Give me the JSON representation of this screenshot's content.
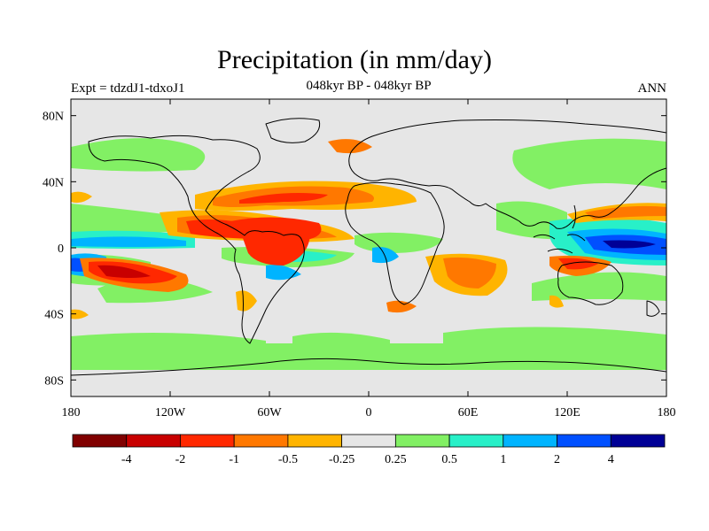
{
  "title": "Precipitation (in mm/day)",
  "subtitle_left": "Expt = tdzdJ1-tdxoJ1",
  "subtitle_center": "048kyr BP - 048kyr BP",
  "subtitle_right": "ANN",
  "map": {
    "lon_range": [
      -180,
      180
    ],
    "lat_range": [
      -90,
      90
    ],
    "x_ticks": [
      {
        "lon": -180,
        "label": "180"
      },
      {
        "lon": -120,
        "label": "120W"
      },
      {
        "lon": -60,
        "label": "60W"
      },
      {
        "lon": 0,
        "label": "0"
      },
      {
        "lon": 60,
        "label": "60E"
      },
      {
        "lon": 120,
        "label": "120E"
      },
      {
        "lon": 180,
        "label": "180"
      }
    ],
    "y_ticks": [
      {
        "lat": 80,
        "label": "80N"
      },
      {
        "lat": 40,
        "label": "40N"
      },
      {
        "lat": 0,
        "label": "0"
      },
      {
        "lat": -40,
        "label": "40S"
      },
      {
        "lat": -80,
        "label": "80S"
      }
    ]
  },
  "colorbar": {
    "colors": [
      "#800000",
      "#c80000",
      "#ff2800",
      "#ff7800",
      "#ffb400",
      "#e6e6e6",
      "#82f064",
      "#28f0c8",
      "#00b4ff",
      "#0050ff",
      "#000096"
    ],
    "labels": [
      "-4",
      "-2",
      "-1",
      "-0.5",
      "-0.25",
      "0.25",
      "0.5",
      "1",
      "2",
      "4"
    ]
  },
  "colors": {
    "background": "#e6e6e6",
    "coastline": "#000000"
  }
}
